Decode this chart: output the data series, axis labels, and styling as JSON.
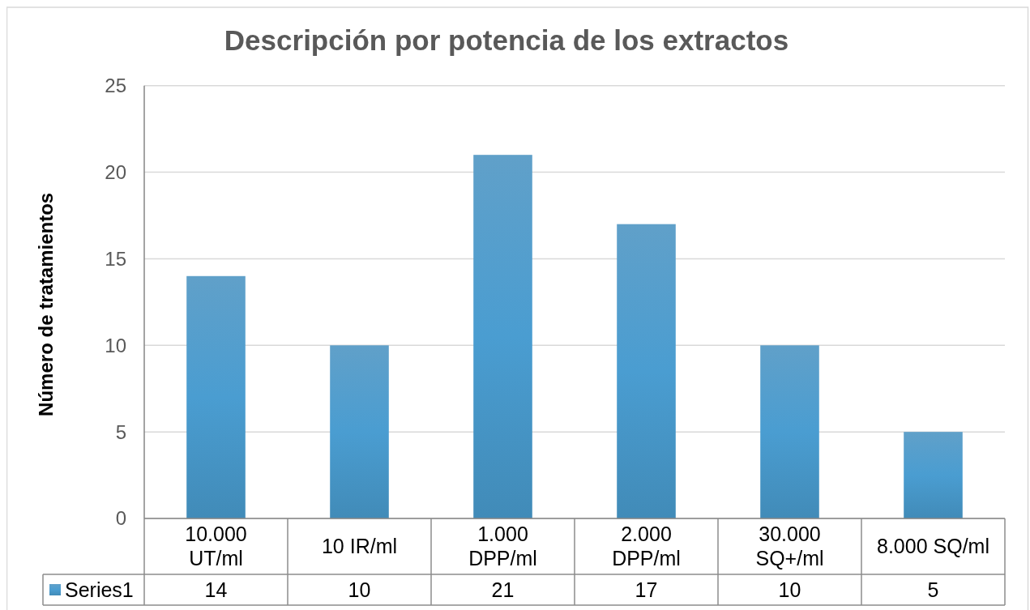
{
  "chart_data": {
    "type": "bar",
    "title": "Descripción por potencia de los extractos",
    "ylabel": "Número de tratamientos",
    "categories": [
      "10.000 UT/ml",
      "10 IR/ml",
      "1.000 DPP/ml",
      "2.000 DPP/ml",
      "30.000 SQ+/ml",
      "8.000 SQ/ml"
    ],
    "series": [
      {
        "name": "Series1",
        "color": "#4a9dd1",
        "values": [
          14,
          10,
          21,
          17,
          10,
          5
        ]
      }
    ],
    "ylim": [
      0,
      25
    ],
    "yticks": [
      0,
      5,
      10,
      15,
      20,
      25
    ],
    "grid": "y",
    "legend": "bottom",
    "data_labels": true
  }
}
